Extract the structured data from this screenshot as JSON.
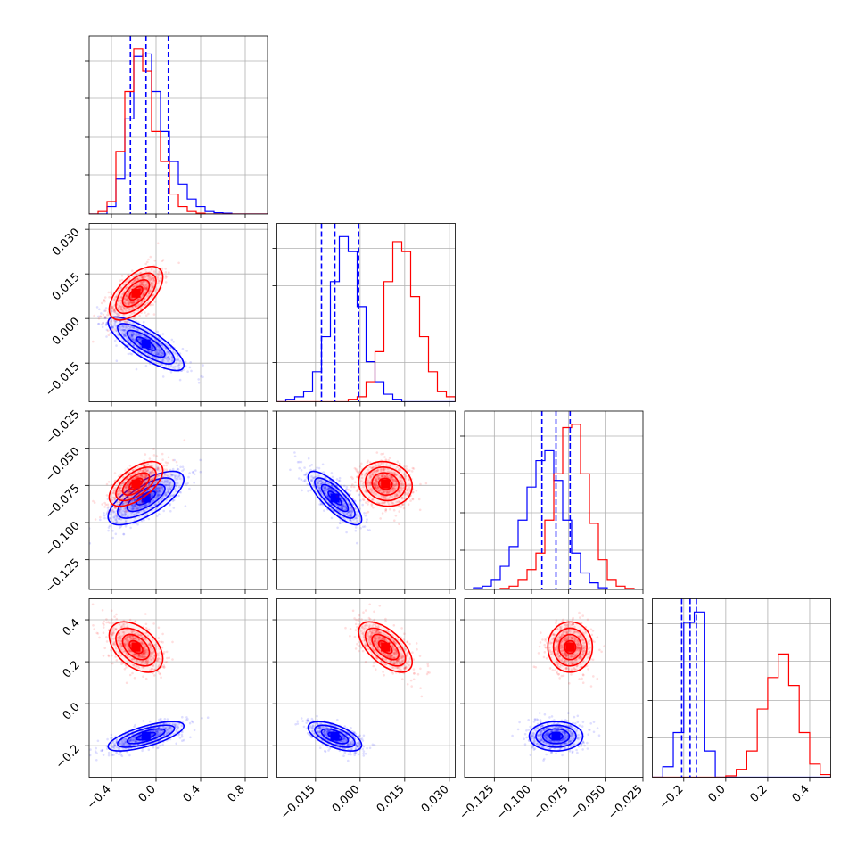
{
  "chart_data": {
    "type": "corner",
    "grid": true,
    "colors": {
      "series_a": "#0000ff",
      "series_b": "#ff0000"
    },
    "parameters": 4,
    "ranges": [
      [
        -0.6,
        1.0
      ],
      [
        -0.028,
        0.032
      ],
      [
        -0.145,
        -0.025
      ],
      [
        -0.35,
        0.5
      ]
    ],
    "ticks": [
      [
        -0.4,
        0.0,
        0.4,
        0.8
      ],
      [
        -0.015,
        0.0,
        0.015,
        0.03
      ],
      [
        -0.125,
        -0.1,
        -0.075,
        -0.05,
        -0.025
      ],
      [
        -0.2,
        0.0,
        0.2,
        0.4
      ]
    ],
    "tick_labels": [
      [
        "−0.4",
        "0.0",
        "0.4",
        "0.8"
      ],
      [
        "−0.015",
        "0.000",
        "0.015",
        "0.030"
      ],
      [
        "−0.125",
        "−0.100",
        "−0.075",
        "−0.050",
        "−0.025"
      ],
      [
        "−0.2",
        "0.0",
        "0.2",
        "0.4"
      ]
    ],
    "quantile_lines_blue": [
      [
        -0.23,
        -0.09,
        0.11
      ],
      [
        -0.013,
        -0.0085,
        -0.0005
      ],
      [
        -0.093,
        -0.0835,
        -0.074
      ],
      [
        -0.21,
        -0.17,
        -0.14
      ]
    ],
    "means": {
      "blue": [
        -0.09,
        -0.0085,
        -0.0835,
        -0.155
      ],
      "red": [
        -0.18,
        0.0085,
        -0.074,
        0.27
      ]
    },
    "spreads": {
      "blue": [
        0.17,
        0.0045,
        0.009,
        0.035
      ],
      "red": [
        0.12,
        0.0045,
        0.0075,
        0.06
      ]
    },
    "correlations": {
      "blue": {
        "0-1": -0.8,
        "0-2": 0.7,
        "0-3": 0.7,
        "1-2": -0.8,
        "1-3": -0.6,
        "2-3": 0.0
      },
      "red": {
        "0-1": 0.6,
        "0-2": 0.6,
        "0-3": -0.45,
        "1-2": -0.1,
        "1-3": -0.6,
        "2-3": 0.0
      }
    },
    "histograms": [
      {
        "bin_edges": [
          -0.6,
          -0.52,
          -0.44,
          -0.36,
          -0.28,
          -0.2,
          -0.12,
          -0.04,
          0.04,
          0.12,
          0.2,
          0.28,
          0.36,
          0.44,
          0.52,
          0.6,
          0.68,
          0.76,
          0.84,
          0.92,
          1.0
        ],
        "blue": [
          0,
          0,
          3,
          14,
          38,
          63,
          64,
          49,
          33,
          21,
          12,
          6,
          3,
          1,
          0.5,
          0.3,
          0,
          0,
          0,
          0
        ],
        "red": [
          0,
          1,
          5,
          25,
          49,
          66,
          57,
          33,
          21,
          8,
          3,
          1,
          0.3,
          0,
          0,
          0,
          0,
          0,
          0,
          0
        ]
      },
      {
        "bin_edges": [
          -0.028,
          -0.025,
          -0.022,
          -0.019,
          -0.016,
          -0.013,
          -0.01,
          -0.007,
          -0.004,
          -0.001,
          0.002,
          0.005,
          0.008,
          0.011,
          0.014,
          0.017,
          0.02,
          0.023,
          0.026,
          0.029,
          0.032
        ],
        "blue": [
          0,
          0.5,
          1,
          2,
          6,
          13,
          24,
          33,
          30,
          19,
          8,
          4,
          1.5,
          0.5,
          0,
          0,
          0,
          0,
          0,
          0
        ],
        "red": [
          0,
          0,
          0,
          0,
          0,
          0,
          0,
          0,
          0.5,
          1,
          4,
          10,
          24,
          32,
          30,
          21,
          13,
          6,
          2,
          1
        ]
      },
      {
        "bin_edges": [
          -0.145,
          -0.139,
          -0.133,
          -0.127,
          -0.121,
          -0.115,
          -0.109,
          -0.103,
          -0.097,
          -0.091,
          -0.085,
          -0.079,
          -0.073,
          -0.067,
          -0.061,
          -0.055,
          -0.049,
          -0.043,
          -0.037,
          -0.031,
          -0.025
        ],
        "blue": [
          0,
          0.5,
          1,
          3,
          7,
          13,
          21,
          31,
          39,
          42,
          33,
          21,
          11,
          5,
          2,
          0.5,
          0,
          0,
          0,
          0
        ],
        "red": [
          0,
          0,
          0,
          0,
          0.3,
          1,
          3,
          6,
          11,
          21,
          35,
          49,
          50,
          35,
          20,
          9,
          3,
          1,
          0.3,
          0
        ]
      },
      {
        "bin_edges": [
          -0.35,
          -0.3,
          -0.25,
          -0.2,
          -0.15,
          -0.1,
          -0.05,
          0.0,
          0.05,
          0.1,
          0.15,
          0.2,
          0.25,
          0.3,
          0.35,
          0.4,
          0.45,
          0.5
        ],
        "blue": [
          0,
          4,
          17,
          59,
          63,
          10,
          0,
          0,
          0,
          0,
          0,
          0,
          0,
          0,
          0,
          0,
          0
        ],
        "red": [
          0,
          0,
          0,
          0,
          0,
          0,
          0,
          0.5,
          3,
          10,
          26,
          38,
          47,
          35,
          17,
          5,
          1
        ]
      }
    ]
  }
}
